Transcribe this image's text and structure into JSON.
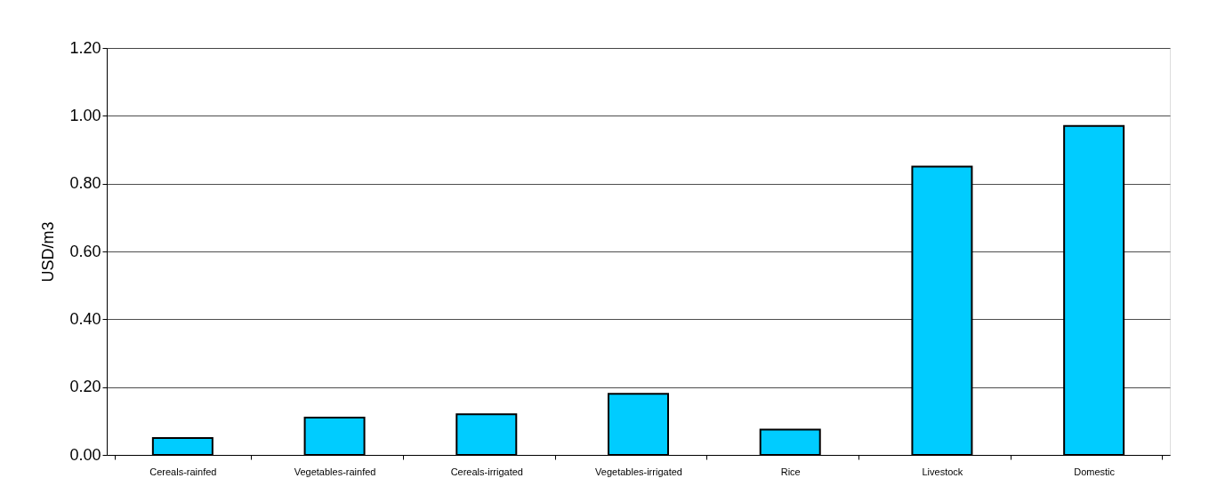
{
  "chart_data": {
    "type": "bar",
    "ylabel": "USD/m3",
    "categories": [
      "Cereals-rainfed",
      "Vegetables-rainfed",
      "Cereals-irrigated",
      "Vegetables-irrigated",
      "Rice",
      "Livestock",
      "Domestic"
    ],
    "values": [
      0.05,
      0.11,
      0.12,
      0.18,
      0.075,
      0.85,
      0.97
    ],
    "color": "#00ccff",
    "ylim": [
      0,
      1.2
    ],
    "yticks": [
      {
        "value": 0,
        "label": "0.00"
      },
      {
        "value": 0.2,
        "label": "0.20"
      },
      {
        "value": 0.4,
        "label": "0.40"
      },
      {
        "value": 0.6,
        "label": "0.60"
      },
      {
        "value": 0.8,
        "label": "0.80"
      },
      {
        "value": 1.0,
        "label": "1.00"
      },
      {
        "value": 1.2,
        "label": "1.20"
      }
    ],
    "grid": "y"
  }
}
